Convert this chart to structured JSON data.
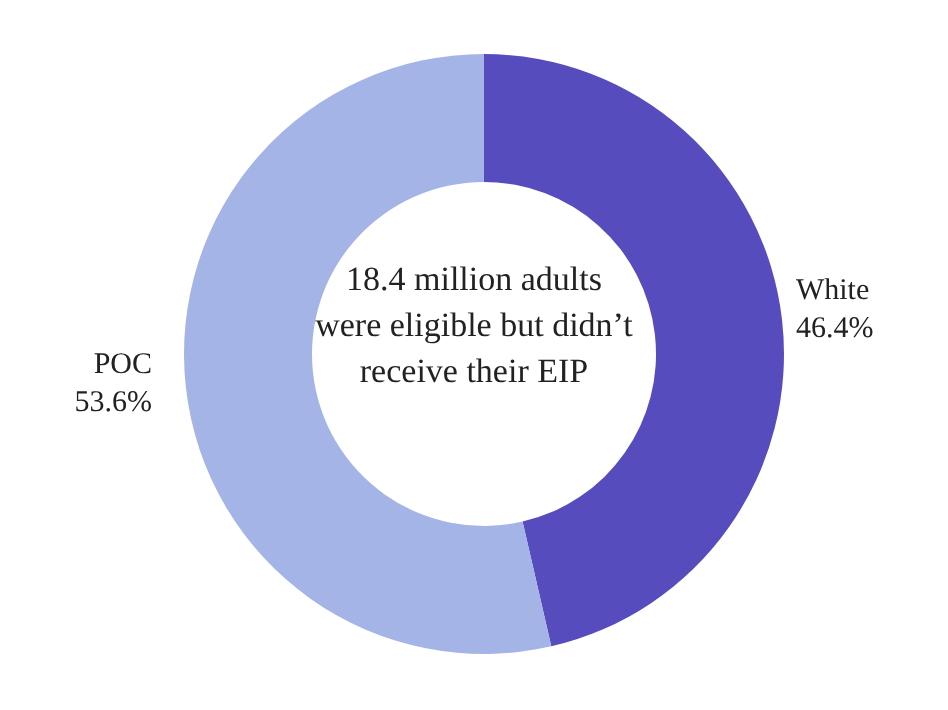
{
  "chart_data": {
    "type": "donut",
    "categories": [
      "White",
      "POC"
    ],
    "values": [
      46.4,
      53.6
    ],
    "colors": [
      "#574cbd",
      "#a4b4e6"
    ],
    "value_labels": [
      "46.4%",
      "53.6%"
    ],
    "annotations": [
      "18.4 million adults were eligible but didn’t receive their EIP"
    ],
    "legend": false
  }
}
